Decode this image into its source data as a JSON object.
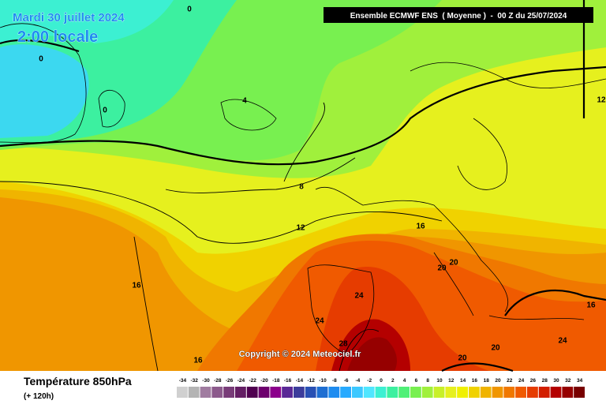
{
  "header": {
    "date": "Mardi 30 juillet 2024",
    "time": "2:00 locale",
    "run": "Ensemble ECMWF ENS  ( Moyenne )  -  00 Z du 25/07/2024"
  },
  "map": {
    "contour_labels": [
      0,
      0,
      0,
      4,
      8,
      12,
      12,
      16,
      16,
      16,
      16,
      20,
      20,
      24,
      24,
      28,
      20,
      20,
      24
    ],
    "copyright": "Copyright © 2024 Meteociel.fr"
  },
  "footer": {
    "title": "Température 850hPa",
    "subtitle": "(+ 120h)"
  },
  "legend": {
    "values": [
      -34,
      -32,
      -30,
      -28,
      -26,
      -24,
      -22,
      -20,
      -18,
      -16,
      -14,
      -12,
      -10,
      -8,
      -6,
      -4,
      -2,
      0,
      2,
      4,
      6,
      8,
      10,
      12,
      14,
      16,
      18,
      20,
      22,
      24,
      26,
      28,
      30,
      32,
      34
    ],
    "colors": [
      "#d0d0d0",
      "#b4b4b4",
      "#a07ca0",
      "#8c5a8c",
      "#783c78",
      "#641e64",
      "#500050",
      "#6e006e",
      "#8c008c",
      "#5a2896",
      "#3c3c9b",
      "#2850b4",
      "#1e6ed2",
      "#1e8cf0",
      "#28aaff",
      "#3cc8ff",
      "#50e6ff",
      "#3cf0d2",
      "#3cf0a0",
      "#50f078",
      "#78f050",
      "#a0f03c",
      "#c8f028",
      "#e6f01e",
      "#f0f000",
      "#f0d200",
      "#f0b400",
      "#f09600",
      "#f07800",
      "#f05a00",
      "#e63c00",
      "#d21e00",
      "#b40000",
      "#960000",
      "#780000"
    ]
  }
}
